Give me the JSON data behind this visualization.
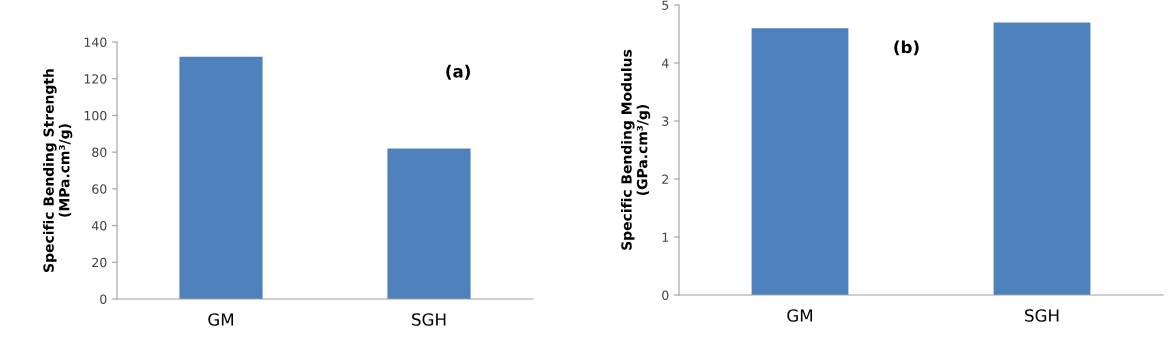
{
  "chart_data": [
    {
      "type": "bar",
      "ylabel": "Specific Bending Strength\n(MPa.cm³/g)",
      "categories": [
        "GM",
        "SGH"
      ],
      "values": [
        132,
        82
      ],
      "color": "#4f81bd",
      "ylim": [
        0,
        140
      ],
      "yticks": [
        0,
        20,
        40,
        60,
        80,
        100,
        120,
        140
      ],
      "annotations": [
        "(a)"
      ]
    },
    {
      "type": "bar",
      "ylabel": "Specific Bending Modulus\n(GPa.cm³/g)",
      "categories": [
        "GM",
        "SGH"
      ],
      "values": [
        4.6,
        4.7
      ],
      "color": "#4f81bd",
      "ylim": [
        0,
        5
      ],
      "yticks": [
        0,
        1,
        2,
        3,
        4,
        5
      ],
      "annotations": [
        "(b)"
      ]
    }
  ]
}
